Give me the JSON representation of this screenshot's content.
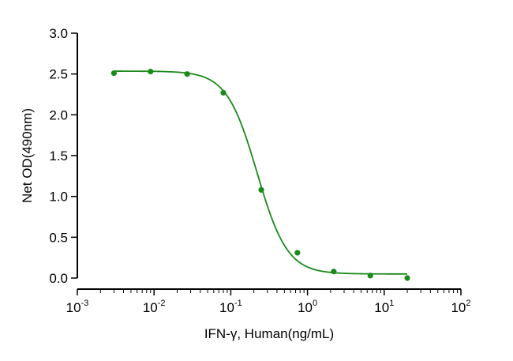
{
  "chart_data": {
    "type": "scatter",
    "xlabel": "IFN-γ, Human(ng/mL)",
    "ylabel": "Net OD(490nm)",
    "xscale": "log",
    "xlim": [
      0.001,
      100
    ],
    "ylim": [
      0,
      3.0
    ],
    "x_ticks": [
      0.001,
      0.01,
      0.1,
      1,
      10,
      100
    ],
    "x_tick_labels": [
      {
        "base": "10",
        "exp": "-3"
      },
      {
        "base": "10",
        "exp": "-2"
      },
      {
        "base": "10",
        "exp": "-1"
      },
      {
        "base": "10",
        "exp": "0"
      },
      {
        "base": "10",
        "exp": "1"
      },
      {
        "base": "10",
        "exp": "2"
      }
    ],
    "y_ticks": [
      0.0,
      0.5,
      1.0,
      1.5,
      2.0,
      2.5,
      3.0
    ],
    "y_tick_labels": [
      "0.0",
      "0.5",
      "1.0",
      "1.5",
      "2.0",
      "2.5",
      "3.0"
    ],
    "grid": false,
    "legend": "none",
    "color": "#1a8a1a",
    "series": [
      {
        "x": [
          0.003,
          0.009,
          0.027,
          0.08,
          0.25,
          0.74,
          2.2,
          6.6,
          20
        ],
        "y": [
          2.51,
          2.53,
          2.5,
          2.27,
          1.08,
          0.31,
          0.08,
          0.03,
          0.0
        ]
      }
    ],
    "fit": {
      "model": "4PL",
      "top": 2.535,
      "bottom": 0.05,
      "ec50": 0.22,
      "hill": 2.2,
      "x_range": [
        0.003,
        20
      ]
    }
  }
}
